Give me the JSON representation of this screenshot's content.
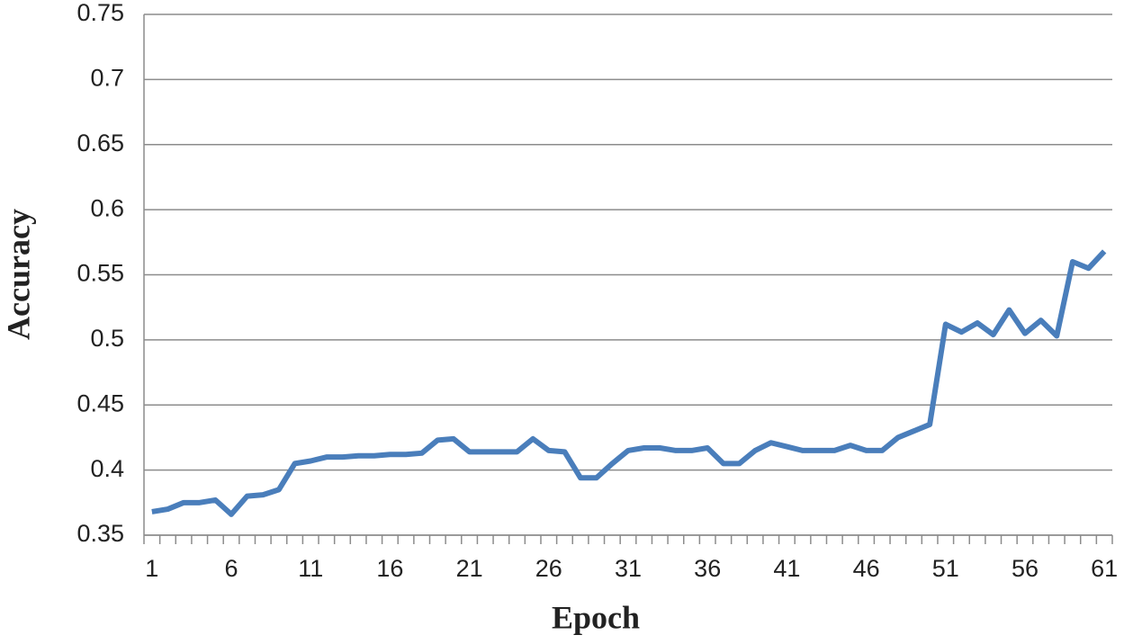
{
  "chart_data": {
    "type": "line",
    "x_label": "Epoch",
    "y_label": "Accuracy",
    "x": [
      1,
      2,
      3,
      4,
      5,
      6,
      7,
      8,
      9,
      10,
      11,
      12,
      13,
      14,
      15,
      16,
      17,
      18,
      19,
      20,
      21,
      22,
      23,
      24,
      25,
      26,
      27,
      28,
      29,
      30,
      31,
      32,
      33,
      34,
      35,
      36,
      37,
      38,
      39,
      40,
      41,
      42,
      43,
      44,
      45,
      46,
      47,
      48,
      49,
      50,
      51,
      52,
      53,
      54,
      55,
      56,
      57,
      58,
      59,
      60,
      61
    ],
    "series": [
      {
        "color": "#4a7ebb",
        "values": [
          0.368,
          0.37,
          0.375,
          0.375,
          0.377,
          0.366,
          0.38,
          0.381,
          0.385,
          0.405,
          0.407,
          0.41,
          0.41,
          0.411,
          0.411,
          0.412,
          0.412,
          0.413,
          0.423,
          0.424,
          0.414,
          0.414,
          0.414,
          0.414,
          0.424,
          0.415,
          0.414,
          0.394,
          0.394,
          0.405,
          0.415,
          0.417,
          0.417,
          0.415,
          0.415,
          0.417,
          0.405,
          0.405,
          0.415,
          0.421,
          0.418,
          0.415,
          0.415,
          0.415,
          0.419,
          0.415,
          0.415,
          0.425,
          0.43,
          0.435,
          0.512,
          0.506,
          0.513,
          0.504,
          0.523,
          0.505,
          0.515,
          0.503,
          0.56,
          0.555,
          0.568
        ]
      }
    ],
    "xlim": [
      0.5,
      61.5
    ],
    "xticks": [
      1,
      6,
      11,
      16,
      21,
      26,
      31,
      36,
      41,
      46,
      51,
      56,
      61
    ],
    "ylim": [
      0.35,
      0.75
    ],
    "yticks": [
      0.35,
      0.4,
      0.45,
      0.5,
      0.55,
      0.6,
      0.65,
      0.7,
      0.75
    ],
    "grid": true
  }
}
